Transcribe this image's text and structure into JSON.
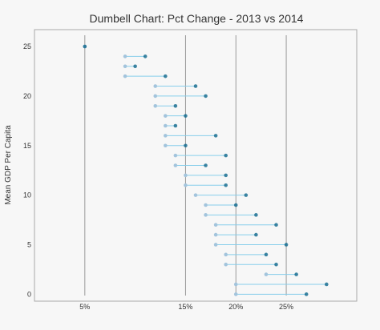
{
  "chart_data": {
    "type": "dumbbell",
    "title": "Dumbell Chart: Pct Change - 2013 vs 2014",
    "xlabel": "",
    "ylabel": "Mean GDP Per Capita",
    "xlim": [
      0.0,
      0.32
    ],
    "ylim": [
      -0.7,
      26.7
    ],
    "x_ticks": [
      0.05,
      0.15,
      0.2,
      0.25
    ],
    "x_tick_labels": [
      "5%",
      "15%",
      "20%",
      "25%"
    ],
    "y_ticks": [
      0,
      5,
      10,
      15,
      20,
      25
    ],
    "y_tick_labels": [
      "0",
      "5",
      "10",
      "15",
      "20",
      "25"
    ],
    "vertical_reference_lines": [
      0.05,
      0.15,
      0.2,
      0.25
    ],
    "grid": false,
    "colors": {
      "start_point": "#a3c4dc",
      "end_point": "#0e668b",
      "connector": "skyblue",
      "reference_line": "#999999",
      "background": "#f7f7f7",
      "plot_border": "#aaaaaa"
    },
    "points": [
      {
        "y": 0,
        "start": 0.2,
        "end": 0.27
      },
      {
        "y": 1,
        "start": 0.2,
        "end": 0.29
      },
      {
        "y": 2,
        "start": 0.23,
        "end": 0.26
      },
      {
        "y": 3,
        "start": 0.19,
        "end": 0.24
      },
      {
        "y": 4,
        "start": 0.19,
        "end": 0.23
      },
      {
        "y": 5,
        "start": 0.18,
        "end": 0.25
      },
      {
        "y": 6,
        "start": 0.18,
        "end": 0.22
      },
      {
        "y": 7,
        "start": 0.18,
        "end": 0.24
      },
      {
        "y": 8,
        "start": 0.17,
        "end": 0.22
      },
      {
        "y": 9,
        "start": 0.17,
        "end": 0.2
      },
      {
        "y": 10,
        "start": 0.16,
        "end": 0.21
      },
      {
        "y": 11,
        "start": 0.15,
        "end": 0.19
      },
      {
        "y": 12,
        "start": 0.15,
        "end": 0.19
      },
      {
        "y": 13,
        "start": 0.14,
        "end": 0.17
      },
      {
        "y": 14,
        "start": 0.14,
        "end": 0.19
      },
      {
        "y": 15,
        "start": 0.13,
        "end": 0.15
      },
      {
        "y": 16,
        "start": 0.13,
        "end": 0.18
      },
      {
        "y": 17,
        "start": 0.13,
        "end": 0.14
      },
      {
        "y": 18,
        "start": 0.13,
        "end": 0.15
      },
      {
        "y": 19,
        "start": 0.12,
        "end": 0.14
      },
      {
        "y": 20,
        "start": 0.12,
        "end": 0.17
      },
      {
        "y": 21,
        "start": 0.12,
        "end": 0.16
      },
      {
        "y": 22,
        "start": 0.09,
        "end": 0.13
      },
      {
        "y": 23,
        "start": 0.09,
        "end": 0.1
      },
      {
        "y": 24,
        "start": 0.09,
        "end": 0.11
      },
      {
        "y": 25,
        "start": 0.05,
        "end": 0.05
      }
    ]
  }
}
